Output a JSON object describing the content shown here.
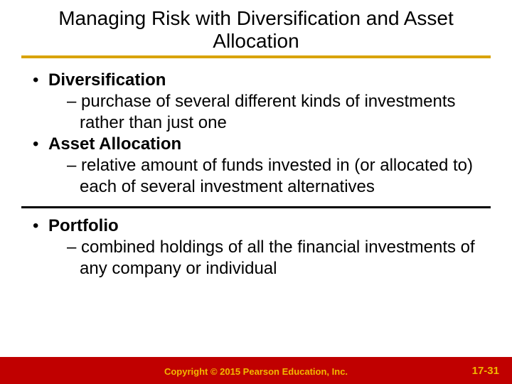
{
  "colors": {
    "underline": "#d9a300",
    "divider": "#000000",
    "footer_bg": "#c00000",
    "footer_text": "#f2b800",
    "page_num": "#f2b800",
    "body_text": "#000000",
    "title_text": "#000000",
    "background": "#ffffff"
  },
  "title": "Managing Risk with Diversification and Asset Allocation",
  "section1": {
    "bullets": [
      {
        "heading": "Diversification",
        "sub": "– purchase of several different kinds of investments rather than just one"
      },
      {
        "heading": "Asset Allocation",
        "sub": "– relative amount of funds invested in (or allocated to) each of several investment alternatives"
      }
    ]
  },
  "section2": {
    "bullets": [
      {
        "heading": "Portfolio",
        "sub": "– combined holdings of all the financial investments of any company or individual"
      }
    ]
  },
  "footer": {
    "copyright": "Copyright © 2015 Pearson Education, Inc.",
    "page": "17-31"
  }
}
